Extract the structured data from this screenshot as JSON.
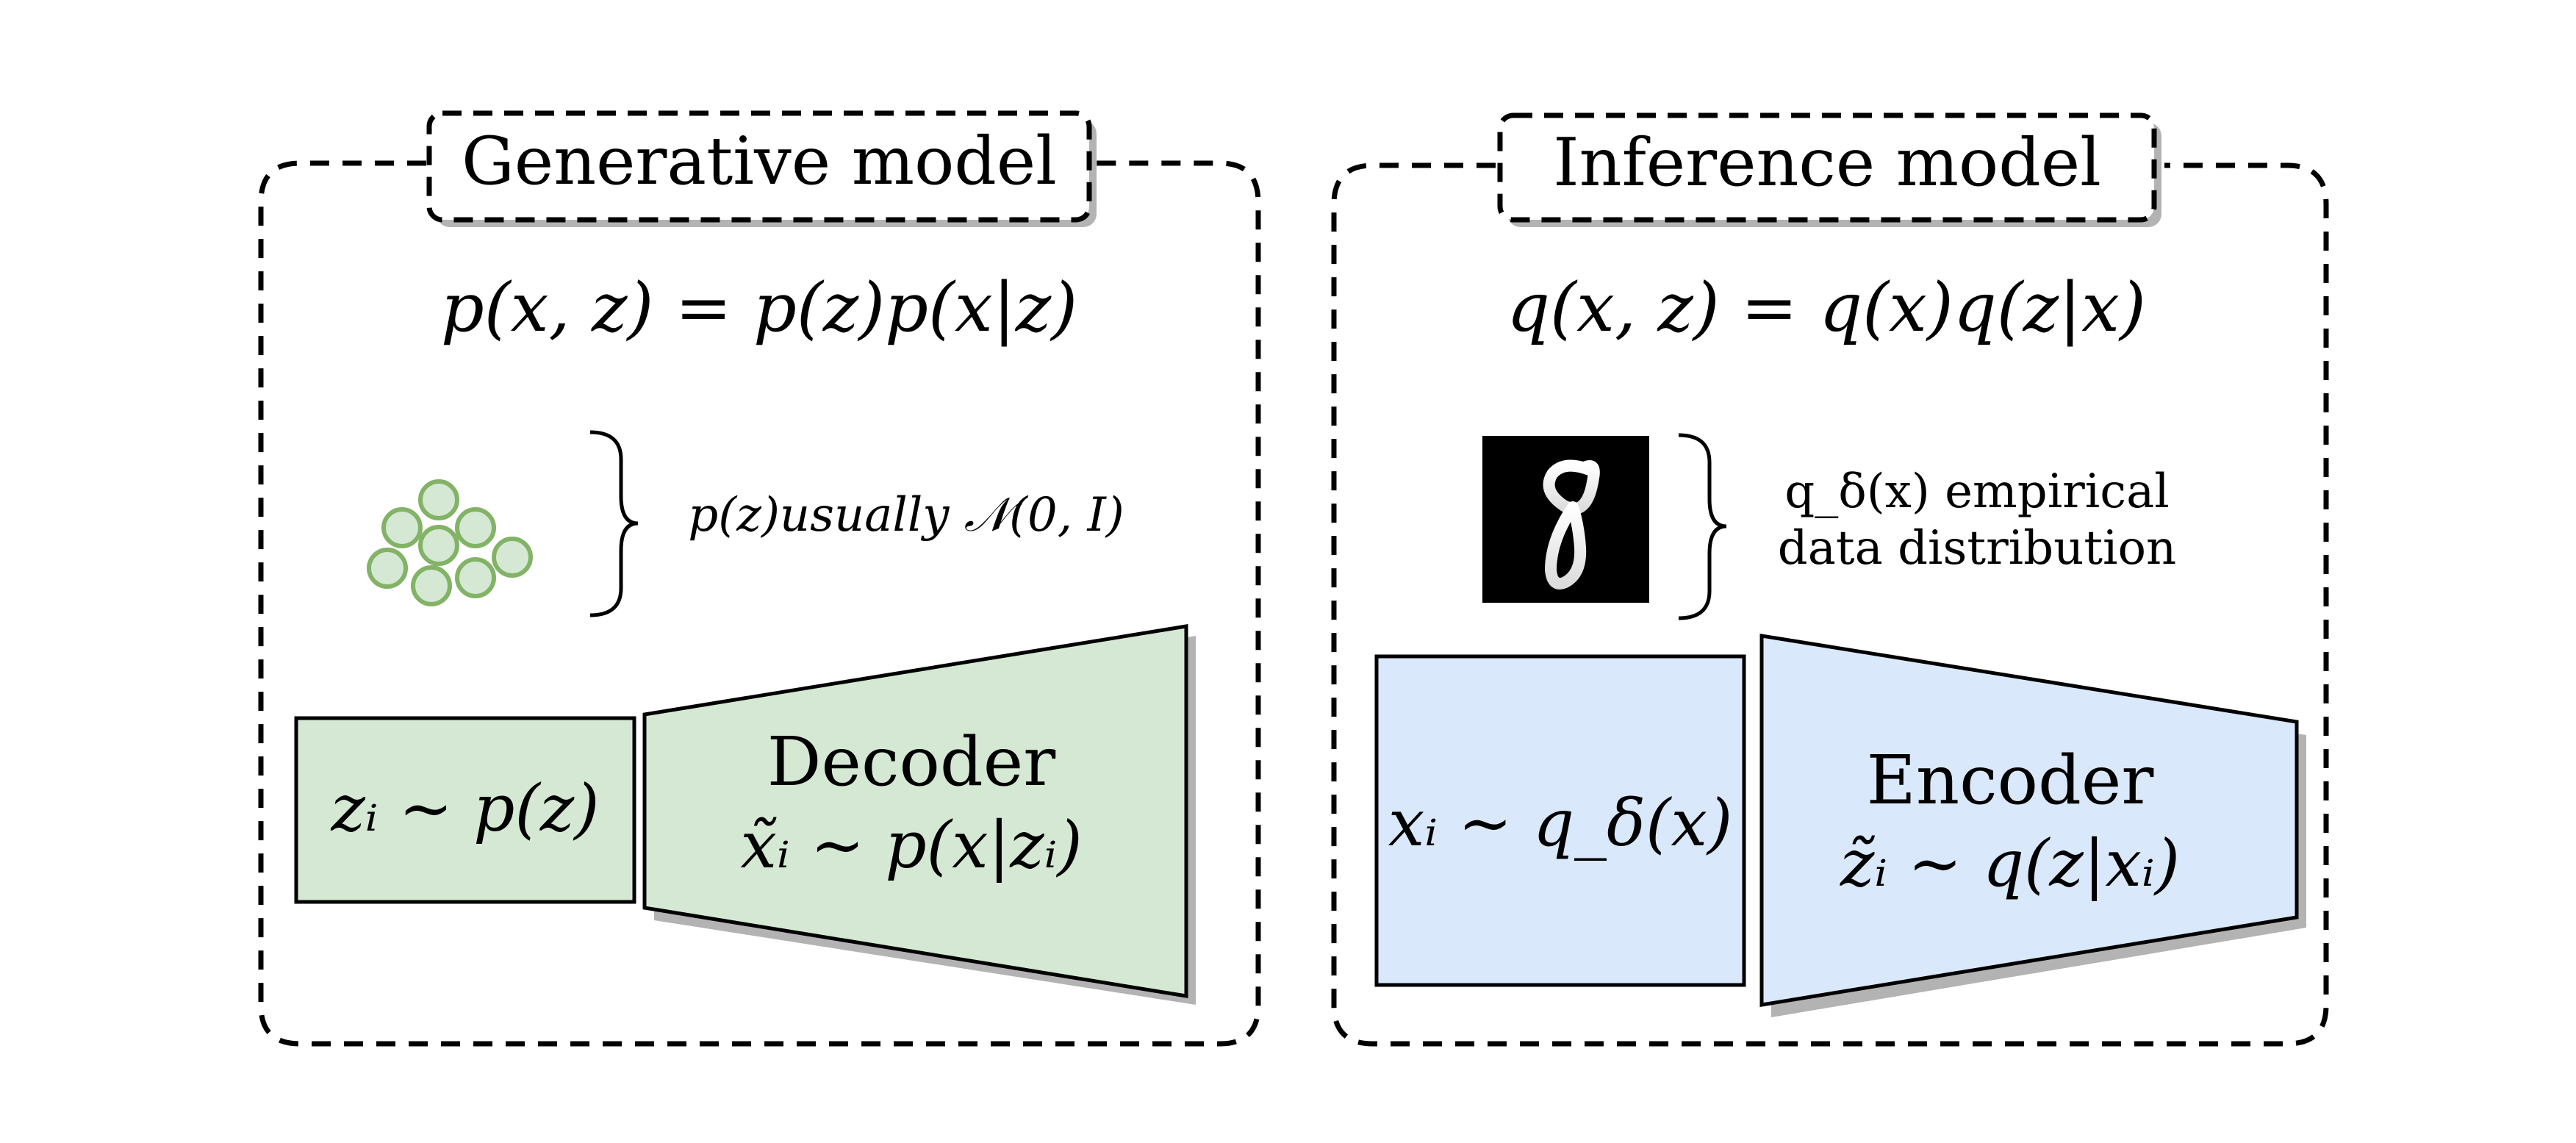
{
  "generative": {
    "title": "Generative model",
    "joint": "p(x, z) = p(z)p(x|z)",
    "prior_note": "p(z)usually 𝒩(0, I)",
    "latent_box": "zᵢ ∼ p(z)",
    "decoder_title": "Decoder",
    "decoder_formula": "x̃ᵢ ∼ p(x|zᵢ)",
    "colors": {
      "fill": "#d5e8d4",
      "stroke": "#82b366"
    }
  },
  "inference": {
    "title": "Inference model",
    "joint": "q(x, z) = q(x)q(z|x)",
    "empirical_note_line1": "q_δ(x) empirical",
    "empirical_note_line2": "data distribution",
    "data_box": "xᵢ ∼ q_δ(x)",
    "encoder_title": "Encoder",
    "encoder_formula": "z̃ᵢ ∼ q(z|xᵢ)",
    "sample_image": "mnist-digit-8",
    "colors": {
      "fill": "#dae8fc",
      "stroke": "#000000"
    }
  }
}
